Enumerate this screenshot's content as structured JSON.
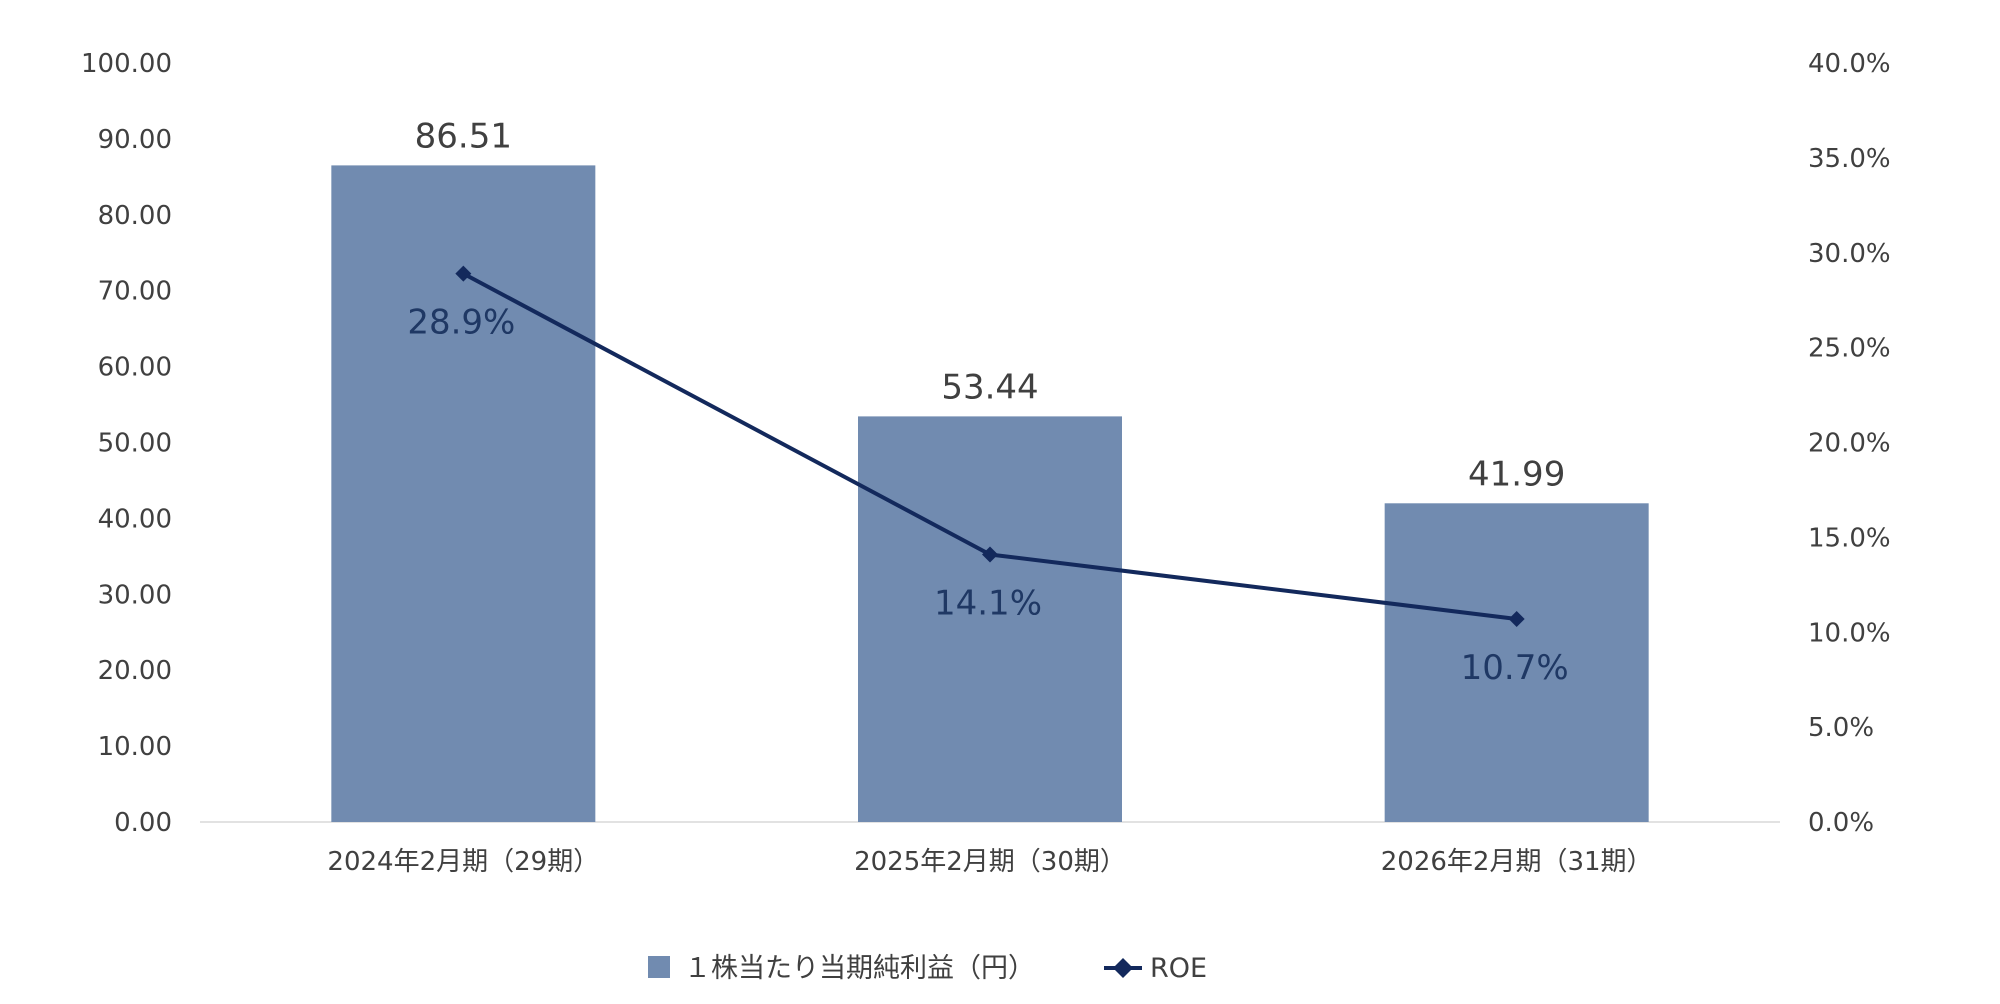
{
  "chart_data": {
    "type": "bar",
    "categories": [
      "2024年2月期（29期）",
      "2025年2月期（30期）",
      "2026年2月期（31期）"
    ],
    "series": [
      {
        "name": "１株当たり当期純利益（円）",
        "type": "bar",
        "axis": "left",
        "values": [
          86.51,
          53.44,
          41.99
        ],
        "labels": [
          "86.51",
          "53.44",
          "41.99"
        ],
        "color": "#718bb0"
      },
      {
        "name": "ROE",
        "type": "line",
        "axis": "right",
        "values": [
          28.9,
          14.1,
          10.7
        ],
        "labels": [
          "28.9%",
          "14.1%",
          "10.7%"
        ],
        "color": "#13295c",
        "marker": "diamond"
      }
    ],
    "y_left": {
      "ylim": [
        0,
        100
      ],
      "ticks": [
        "0.00",
        "10.00",
        "20.00",
        "30.00",
        "40.00",
        "50.00",
        "60.00",
        "70.00",
        "80.00",
        "90.00",
        "100.00"
      ]
    },
    "y_right": {
      "ylim": [
        0,
        40
      ],
      "unit": "%",
      "ticks": [
        "0.0%",
        "5.0%",
        "10.0%",
        "15.0%",
        "20.0%",
        "25.0%",
        "30.0%",
        "35.0%",
        "40.0%"
      ]
    },
    "grid": false,
    "legend_position": "bottom-center"
  }
}
